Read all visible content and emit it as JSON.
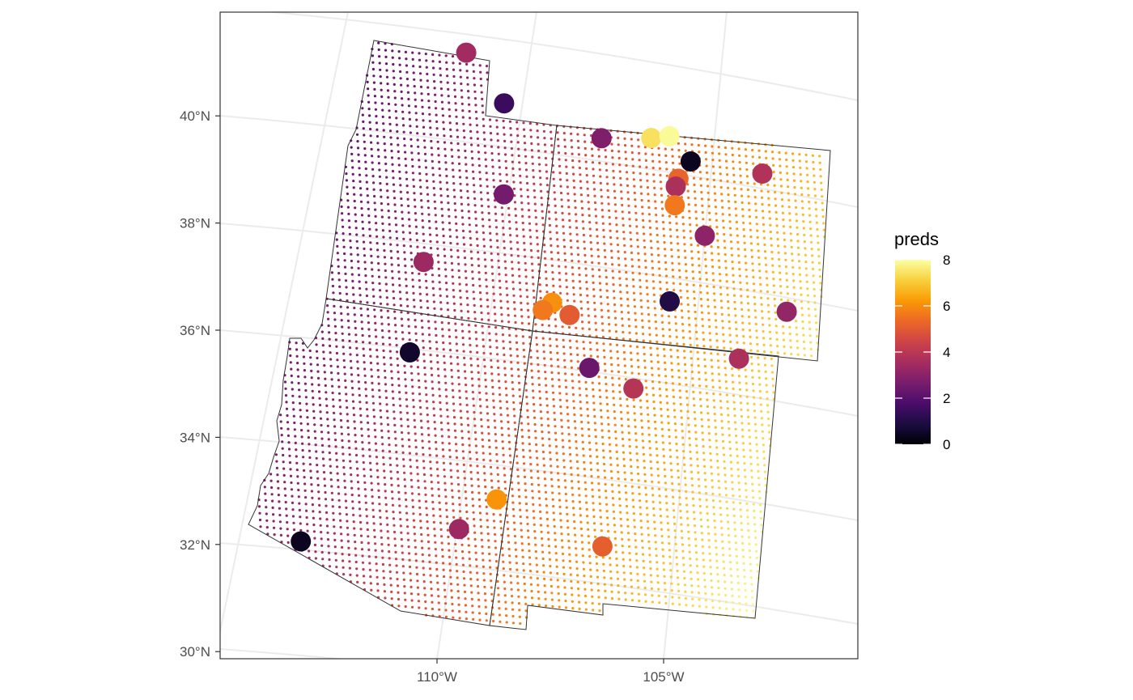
{
  "chart_data": {
    "type": "map",
    "legend": {
      "title": "preds",
      "position": "right",
      "min": 0,
      "max": 8,
      "ticks": [
        {
          "value": 0,
          "label": "0"
        },
        {
          "value": 2,
          "label": "2"
        },
        {
          "value": 4,
          "label": "4"
        },
        {
          "value": 6,
          "label": "6"
        },
        {
          "value": 8,
          "label": "8"
        }
      ],
      "palette": [
        "#000004",
        "#1b0c41",
        "#4a0c6b",
        "#781c6d",
        "#a52c60",
        "#cf4446",
        "#ed6925",
        "#fb9b06",
        "#f7d13d",
        "#fcffa4"
      ]
    },
    "y_axis": {
      "lim": [
        29.8,
        41.5
      ],
      "ticks": [
        {
          "value": 40,
          "label": "40°N"
        },
        {
          "value": 38,
          "label": "38°N"
        },
        {
          "value": 36,
          "label": "36°N"
        },
        {
          "value": 34,
          "label": "34°N"
        },
        {
          "value": 32,
          "label": "32°N"
        },
        {
          "value": 30,
          "label": "30°N"
        }
      ]
    },
    "x_axis": {
      "lim": [
        -115.5,
        -100.5
      ],
      "ticks": [
        {
          "value": -110,
          "label": "110°W"
        },
        {
          "value": -105,
          "label": "105°W"
        }
      ]
    },
    "graticule": true,
    "observations": [
      {
        "lon": -109.7,
        "lat": 40.85,
        "value": 3.5
      },
      {
        "lon": -108.8,
        "lat": 39.95,
        "value": 1.5
      },
      {
        "lon": -106.6,
        "lat": 39.45,
        "value": 2.8
      },
      {
        "lon": -105.5,
        "lat": 39.55,
        "value": 7.4
      },
      {
        "lon": -105.1,
        "lat": 39.62,
        "value": 7.9
      },
      {
        "lon": -104.6,
        "lat": 39.2,
        "value": 0.4
      },
      {
        "lon": -103.0,
        "lat": 39.15,
        "value": 3.8
      },
      {
        "lon": -104.85,
        "lat": 38.85,
        "value": 5.2
      },
      {
        "lon": -104.9,
        "lat": 38.7,
        "value": 3.7
      },
      {
        "lon": -104.9,
        "lat": 38.35,
        "value": 5.6
      },
      {
        "lon": -108.7,
        "lat": 38.25,
        "value": 2.6
      },
      {
        "lon": -104.2,
        "lat": 37.85,
        "value": 3.1
      },
      {
        "lon": -110.4,
        "lat": 36.9,
        "value": 3.4
      },
      {
        "lon": -102.3,
        "lat": 36.65,
        "value": 3.2
      },
      {
        "lon": -104.9,
        "lat": 36.55,
        "value": 1.0
      },
      {
        "lon": -107.5,
        "lat": 36.3,
        "value": 6.0
      },
      {
        "lon": -107.7,
        "lat": 36.15,
        "value": 5.6
      },
      {
        "lon": -107.1,
        "lat": 36.1,
        "value": 5.0
      },
      {
        "lon": -103.3,
        "lat": 35.65,
        "value": 3.7
      },
      {
        "lon": -110.6,
        "lat": 35.2,
        "value": 0.6
      },
      {
        "lon": -106.6,
        "lat": 35.15,
        "value": 2.4
      },
      {
        "lon": -105.6,
        "lat": 34.85,
        "value": 3.9
      },
      {
        "lon": -108.5,
        "lat": 32.55,
        "value": 6.1
      },
      {
        "lon": -109.3,
        "lat": 31.95,
        "value": 3.4
      },
      {
        "lon": -106.1,
        "lat": 31.85,
        "value": 5.1
      },
      {
        "lon": -112.8,
        "lat": 31.6,
        "value": 0.4
      }
    ]
  }
}
